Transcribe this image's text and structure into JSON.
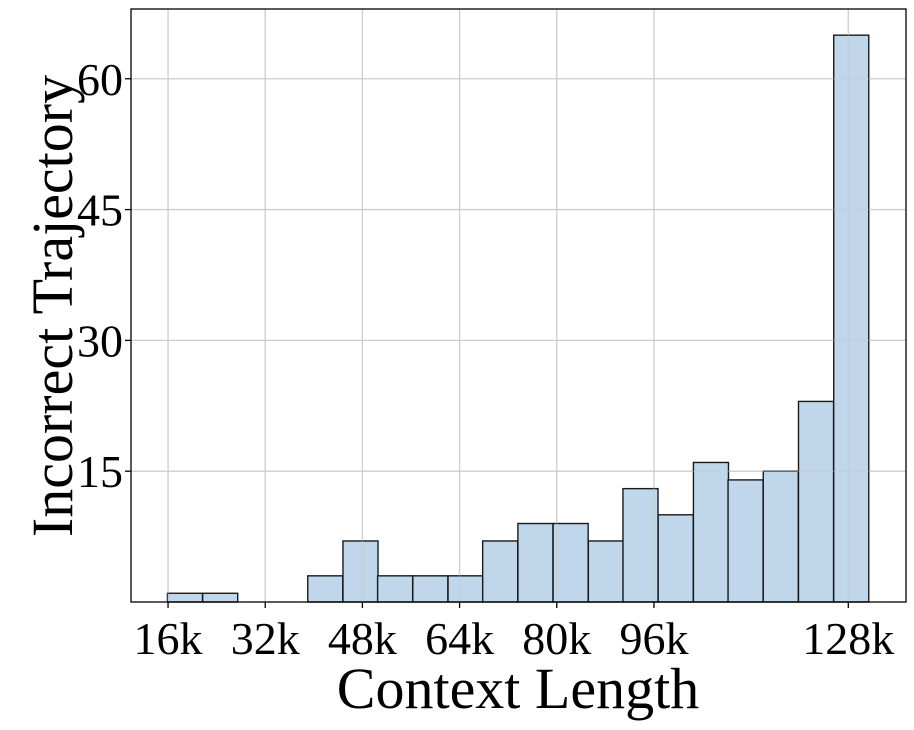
{
  "chart_data": {
    "type": "bar",
    "title": "",
    "xlabel": "Context Length",
    "ylabel": "Incorrect Trajectory",
    "x_tick_labels": [
      "16k",
      "32k",
      "48k",
      "64k",
      "80k",
      "96k",
      "128k"
    ],
    "x_tick_values": [
      16,
      32,
      48,
      64,
      80,
      96,
      128
    ],
    "y_tick_labels": [
      "15",
      "30",
      "45",
      "60"
    ],
    "y_tick_values": [
      15,
      30,
      45,
      60
    ],
    "ylim": [
      0,
      68
    ],
    "xlim": [
      9.9,
      137.5
    ],
    "grid": true,
    "legend": null,
    "bar_color": "#bdd5ea",
    "edge_color": "#1a1a1a",
    "bin_width_k": 5.77,
    "bins_start_k": [
      15.9,
      21.7,
      27.4,
      33.2,
      39.0,
      44.8,
      50.5,
      56.3,
      62.1,
      67.8,
      73.6,
      79.4,
      85.2,
      90.9,
      96.7,
      102.5,
      108.2,
      114.0,
      119.8,
      125.6
    ],
    "values": [
      1,
      1,
      0,
      0,
      3,
      7,
      3,
      3,
      3,
      7,
      9,
      9,
      7,
      13,
      10,
      16,
      14,
      15,
      23,
      65
    ]
  }
}
